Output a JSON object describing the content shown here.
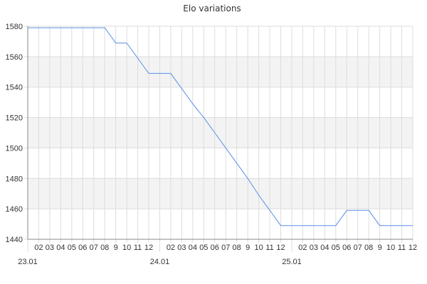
{
  "chart_data": {
    "type": "line",
    "title": "Elo variations",
    "xlabel": "",
    "ylabel": "",
    "ylim": [
      1440,
      1580
    ],
    "yticks": [
      1440,
      1460,
      1480,
      1500,
      1520,
      1540,
      1560,
      1580
    ],
    "categories": [
      "23.01",
      "02",
      "03",
      "04",
      "05",
      "06",
      "07",
      "08",
      "9",
      "10",
      "11",
      "12",
      "24.01",
      "02",
      "03",
      "04",
      "05",
      "06",
      "07",
      "08",
      "9",
      "10",
      "11",
      "12",
      "25.01",
      "02",
      "03",
      "04",
      "05",
      "06",
      "07",
      "08",
      "9",
      "10",
      "11",
      "12"
    ],
    "values": [
      1579,
      1579,
      1579,
      1579,
      1579,
      1579,
      1579,
      1579,
      1569,
      1569,
      1559,
      1549,
      1549,
      1549,
      1539,
      1529,
      1520,
      1510,
      1500,
      1490,
      1480,
      1469,
      1459,
      1449,
      1449,
      1449,
      1449,
      1449,
      1449,
      1459,
      1459,
      1459,
      1449,
      1449,
      1449,
      1449
    ],
    "grid": true,
    "line_color": "#5b8fe6",
    "band_color": "#f3f3f3",
    "grid_color": "#dddddd"
  }
}
